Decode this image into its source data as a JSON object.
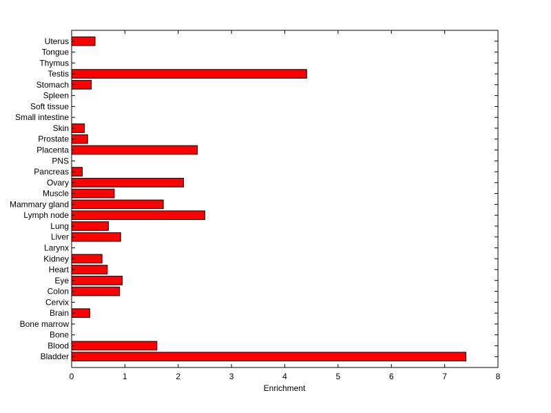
{
  "chart_data": {
    "type": "bar",
    "orientation": "horizontal",
    "title": "",
    "xlabel": "Enrichment",
    "ylabel": "",
    "xlim": [
      0,
      8
    ],
    "x_ticks": [
      0,
      1,
      2,
      3,
      4,
      5,
      6,
      7,
      8
    ],
    "grid": false,
    "bar_color": "#ff0000",
    "bar_edge_color": "#000000",
    "categories": [
      "Bladder",
      "Blood",
      "Bone",
      "Bone marrow",
      "Brain",
      "Cervix",
      "Colon",
      "Eye",
      "Heart",
      "Kidney",
      "Larynx",
      "Liver",
      "Lung",
      "Lymph node",
      "Mammary gland",
      "Muscle",
      "Ovary",
      "Pancreas",
      "PNS",
      "Placenta",
      "Prostate",
      "Skin",
      "Small intestine",
      "Soft tissue",
      "Spleen",
      "Stomach",
      "Testis",
      "Thymus",
      "Tongue",
      "Uterus"
    ],
    "values": [
      7.4,
      1.6,
      0,
      0,
      0.34,
      0,
      0.9,
      0.95,
      0.67,
      0.57,
      0,
      0.92,
      0.69,
      2.5,
      1.72,
      0.8,
      2.1,
      0.2,
      0,
      2.36,
      0.3,
      0.24,
      0,
      0,
      0,
      0.37,
      4.41,
      0,
      0,
      0.44
    ]
  }
}
